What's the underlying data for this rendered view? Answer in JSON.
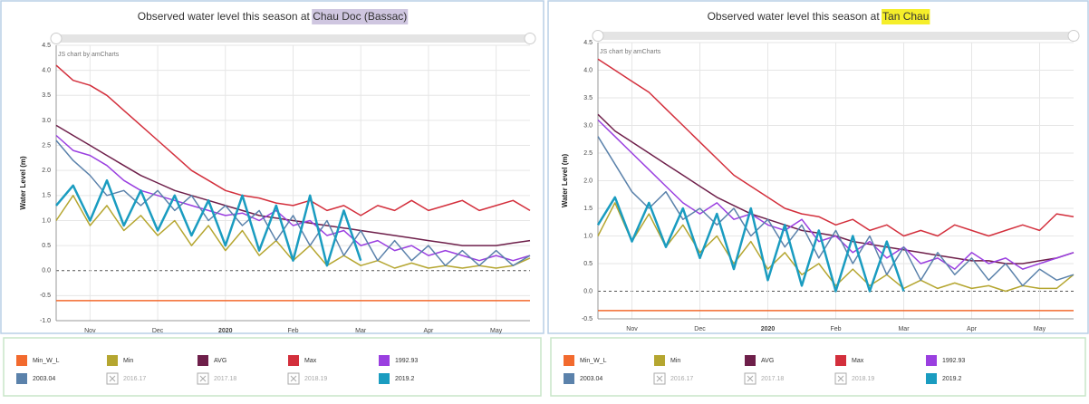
{
  "chart_data": [
    {
      "type": "line",
      "title": "Observed water level this season at",
      "title_highlight": "Chau Doc (Bassac)",
      "title_highlight_color": "#cfc6e0",
      "credit": "JS chart by amCharts",
      "ylabel": "Water Level (m)",
      "grid": true,
      "categories": [
        null,
        null,
        "Nov",
        null,
        null,
        null,
        "Dec",
        null,
        null,
        null,
        "2020",
        null,
        null,
        null,
        "Feb",
        null,
        null,
        null,
        "Mar",
        null,
        null,
        null,
        "Apr",
        null,
        null,
        null,
        "May",
        null,
        null
      ],
      "ylim": [
        -1,
        4.5
      ],
      "yticks": [
        {
          "value": -1,
          "label": "-1.0"
        },
        -0.5,
        {
          "value": 0,
          "label": "0.0"
        },
        0.5,
        {
          "value": 1,
          "label": "1.0"
        },
        1.5,
        {
          "value": 2,
          "label": "2.0"
        },
        2.5,
        {
          "value": 3,
          "label": "3.0"
        },
        3.5,
        {
          "value": 4,
          "label": "4.0"
        },
        4.5
      ],
      "series": [
        {
          "name": "Min_W_L",
          "color": "#f26a2e",
          "values": [
            -0.6,
            -0.6,
            -0.6,
            -0.6,
            -0.6,
            -0.6,
            -0.6,
            -0.6,
            -0.6,
            -0.6,
            -0.6,
            -0.6,
            -0.6,
            -0.6,
            -0.6,
            -0.6,
            -0.6,
            -0.6,
            -0.6,
            -0.6,
            -0.6,
            -0.6,
            -0.6,
            -0.6,
            -0.6,
            -0.6,
            -0.6,
            -0.6,
            -0.6
          ]
        },
        {
          "name": "Min",
          "color": "#b5a630",
          "values": [
            1.0,
            1.5,
            0.9,
            1.3,
            0.8,
            1.1,
            0.7,
            1.0,
            0.5,
            0.9,
            0.4,
            0.8,
            0.3,
            0.6,
            0.2,
            0.5,
            0.1,
            0.3,
            0.1,
            0.2,
            0.05,
            0.15,
            0.05,
            0.1,
            0.05,
            0.1,
            0.05,
            0.1,
            0.25
          ]
        },
        {
          "name": "AVG",
          "color": "#6e1f4a",
          "values": [
            2.9,
            2.7,
            2.5,
            2.3,
            2.1,
            1.9,
            1.75,
            1.6,
            1.5,
            1.4,
            1.3,
            1.2,
            1.1,
            1.05,
            1.0,
            0.95,
            0.9,
            0.85,
            0.8,
            0.75,
            0.7,
            0.65,
            0.6,
            0.55,
            0.5,
            0.5,
            0.5,
            0.55,
            0.6
          ]
        },
        {
          "name": "Max",
          "color": "#d32f3c",
          "values": [
            4.1,
            3.8,
            3.7,
            3.5,
            3.2,
            2.9,
            2.6,
            2.3,
            2.0,
            1.8,
            1.6,
            1.5,
            1.45,
            1.35,
            1.3,
            1.4,
            1.2,
            1.3,
            1.1,
            1.3,
            1.2,
            1.4,
            1.2,
            1.3,
            1.4,
            1.2,
            1.3,
            1.4,
            1.2
          ]
        },
        {
          "name": "1992.93",
          "color": "#9a3fe0",
          "values": [
            2.7,
            2.4,
            2.3,
            2.1,
            1.8,
            1.6,
            1.5,
            1.4,
            1.3,
            1.2,
            1.1,
            1.15,
            1.0,
            1.2,
            0.9,
            1.0,
            0.7,
            0.8,
            0.5,
            0.6,
            0.4,
            0.5,
            0.3,
            0.4,
            0.3,
            0.2,
            0.3,
            0.2,
            0.3
          ]
        },
        {
          "name": "2003.04",
          "color": "#5b82ab",
          "values": [
            2.6,
            2.2,
            1.9,
            1.5,
            1.6,
            1.3,
            1.6,
            1.2,
            1.5,
            1.0,
            1.3,
            0.9,
            1.2,
            0.6,
            1.1,
            0.5,
            1.0,
            0.3,
            0.8,
            0.2,
            0.6,
            0.2,
            0.5,
            0.1,
            0.4,
            0.1,
            0.4,
            0.1,
            0.3
          ]
        },
        {
          "name": "2019.2",
          "color": "#1a9cc0",
          "values": [
            1.3,
            1.7,
            1.0,
            1.8,
            0.9,
            1.6,
            0.8,
            1.5,
            0.7,
            1.4,
            0.5,
            1.5,
            0.4,
            1.3,
            0.2,
            1.5,
            0.1,
            1.2,
            0.2,
            null,
            null,
            null,
            null,
            null,
            null,
            null,
            null,
            null,
            null
          ]
        }
      ],
      "legend_hidden": [
        "2016.17",
        "2017.18",
        "2018.19"
      ]
    },
    {
      "type": "line",
      "title": "Observed water level this season at",
      "title_highlight": "Tan Chau",
      "title_highlight_color": "#f5ee2a",
      "credit": "JS chart by amCharts",
      "ylabel": "Water Level (m)",
      "grid": true,
      "categories": [
        null,
        null,
        "Nov",
        null,
        null,
        null,
        "Dec",
        null,
        null,
        null,
        "2020",
        null,
        null,
        null,
        "Feb",
        null,
        null,
        null,
        "Mar",
        null,
        null,
        null,
        "Apr",
        null,
        null,
        null,
        "May",
        null,
        null
      ],
      "ylim": [
        -0.5,
        4.5
      ],
      "yticks": [
        -0.5,
        {
          "value": 0,
          "label": "0.0"
        },
        0.5,
        {
          "value": 1,
          "label": "1.0"
        },
        1.5,
        {
          "value": 2,
          "label": "2.0"
        },
        2.5,
        {
          "value": 3,
          "label": "3.0"
        },
        3.5,
        {
          "value": 4,
          "label": "4.0"
        },
        4.5
      ],
      "series": [
        {
          "name": "Min_W_L",
          "color": "#f26a2e",
          "values": [
            -0.35,
            -0.35,
            -0.35,
            -0.35,
            -0.35,
            -0.35,
            -0.35,
            -0.35,
            -0.35,
            -0.35,
            -0.35,
            -0.35,
            -0.35,
            -0.35,
            -0.35,
            -0.35,
            -0.35,
            -0.35,
            -0.35,
            -0.35,
            -0.35,
            -0.35,
            -0.35,
            -0.35,
            -0.35,
            -0.35,
            -0.35,
            -0.35,
            -0.35
          ]
        },
        {
          "name": "Min",
          "color": "#b5a630",
          "values": [
            1.0,
            1.6,
            0.9,
            1.4,
            0.8,
            1.2,
            0.7,
            1.0,
            0.5,
            0.9,
            0.4,
            0.7,
            0.3,
            0.5,
            0.1,
            0.4,
            0.1,
            0.3,
            0.05,
            0.2,
            0.05,
            0.15,
            0.05,
            0.1,
            0.0,
            0.1,
            0.05,
            0.05,
            0.3
          ]
        },
        {
          "name": "AVG",
          "color": "#6e1f4a",
          "values": [
            3.2,
            2.9,
            2.7,
            2.5,
            2.3,
            2.1,
            1.9,
            1.7,
            1.55,
            1.4,
            1.3,
            1.2,
            1.1,
            1.05,
            1.0,
            0.9,
            0.85,
            0.8,
            0.75,
            0.7,
            0.65,
            0.6,
            0.55,
            0.55,
            0.5,
            0.5,
            0.55,
            0.6,
            0.7
          ]
        },
        {
          "name": "Max",
          "color": "#d32f3c",
          "values": [
            4.2,
            4.0,
            3.8,
            3.6,
            3.3,
            3.0,
            2.7,
            2.4,
            2.1,
            1.9,
            1.7,
            1.5,
            1.4,
            1.35,
            1.2,
            1.3,
            1.1,
            1.2,
            1.0,
            1.1,
            1.0,
            1.2,
            1.1,
            1.0,
            1.1,
            1.2,
            1.1,
            1.4,
            1.35
          ]
        },
        {
          "name": "1992.93",
          "color": "#9a3fe0",
          "values": [
            3.1,
            2.8,
            2.5,
            2.2,
            1.9,
            1.6,
            1.4,
            1.6,
            1.3,
            1.4,
            1.2,
            1.1,
            1.3,
            0.9,
            1.0,
            0.7,
            0.9,
            0.6,
            0.8,
            0.5,
            0.6,
            0.4,
            0.7,
            0.5,
            0.6,
            0.4,
            0.5,
            0.6,
            0.7
          ]
        },
        {
          "name": "2003.04",
          "color": "#5b82ab",
          "values": [
            2.8,
            2.3,
            1.8,
            1.5,
            1.8,
            1.3,
            1.5,
            1.2,
            1.5,
            1.0,
            1.3,
            0.8,
            1.2,
            0.6,
            1.1,
            0.5,
            1.0,
            0.3,
            0.8,
            0.2,
            0.7,
            0.3,
            0.6,
            0.2,
            0.5,
            0.1,
            0.4,
            0.2,
            0.3
          ]
        },
        {
          "name": "2019.2",
          "color": "#1a9cc0",
          "values": [
            1.2,
            1.7,
            0.9,
            1.6,
            0.8,
            1.5,
            0.6,
            1.4,
            0.4,
            1.5,
            0.2,
            1.2,
            0.1,
            1.1,
            0.0,
            1.0,
            0.0,
            0.9,
            0.0,
            null,
            null,
            null,
            null,
            null,
            null,
            null,
            null,
            null,
            null
          ]
        }
      ],
      "legend_hidden": [
        "2016.17",
        "2017.18",
        "2018.19"
      ]
    }
  ]
}
